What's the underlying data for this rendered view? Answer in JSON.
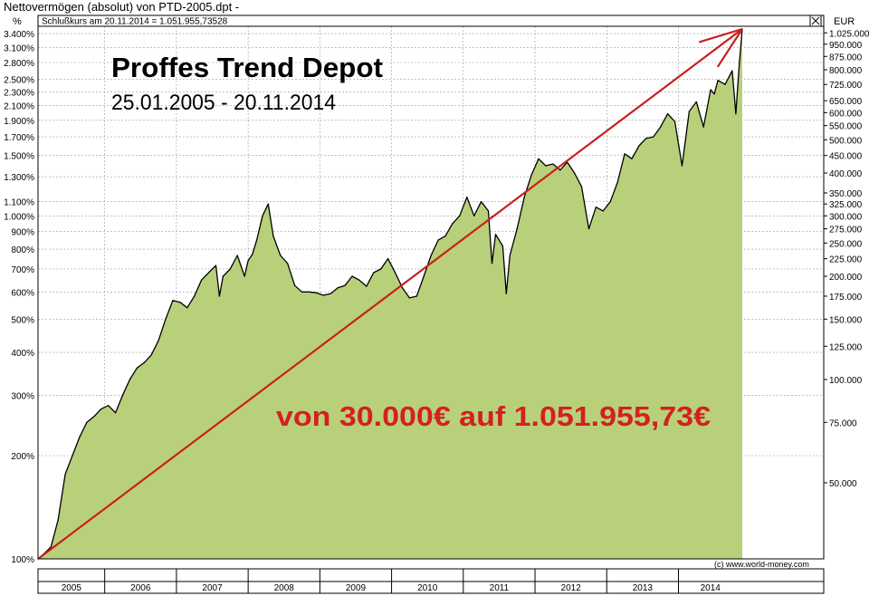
{
  "window": {
    "title": "Nettovermögen (absolut) von PTD-2005.dpt -",
    "status_line": "Schlußkurs am 20.11.2014 = 1.051.955,73528",
    "close_icon": "close-box-icon"
  },
  "chart_data": {
    "type": "area",
    "title": "Proffes Trend Depot",
    "subtitle": "25.01.2005 - 20.11.2014",
    "annotation": "von 30.000€ auf 1.051.955,73€",
    "copyright": "(c) www.world-money.com",
    "log_scale": true,
    "grid": true,
    "left_axis": {
      "unit": "%",
      "ticks": [
        "100%",
        "200%",
        "300%",
        "400%",
        "500%",
        "600%",
        "700%",
        "800%",
        "900%",
        "1.000%",
        "1.100%",
        "1.300%",
        "1.500%",
        "1.700%",
        "1.900%",
        "2.100%",
        "2.300%",
        "2.500%",
        "2.800%",
        "3.100%",
        "3.400%"
      ],
      "tick_values": [
        100,
        200,
        300,
        400,
        500,
        600,
        700,
        800,
        900,
        1000,
        1100,
        1300,
        1500,
        1700,
        1900,
        2100,
        2300,
        2500,
        2800,
        3100,
        3400
      ]
    },
    "right_axis": {
      "unit": "EUR",
      "ticks": [
        "50.000",
        "75.000",
        "100.000",
        "125.000",
        "150.000",
        "175.000",
        "200.000",
        "225.000",
        "250.000",
        "275.000",
        "300.000",
        "325.000",
        "350.000",
        "400.000",
        "450.000",
        "500.000",
        "550.000",
        "600.000",
        "650.000",
        "725.000",
        "800.000",
        "875.000",
        "950.000",
        "1.025.000"
      ],
      "tick_values": [
        50000,
        75000,
        100000,
        125000,
        150000,
        175000,
        200000,
        225000,
        250000,
        275000,
        300000,
        325000,
        350000,
        400000,
        450000,
        500000,
        550000,
        600000,
        650000,
        725000,
        800000,
        875000,
        950000,
        1025000
      ]
    },
    "x_axis": {
      "labels": [
        "2005",
        "2006",
        "2007",
        "2008",
        "2009",
        "2010",
        "2011",
        "2012",
        "2013",
        "2014"
      ],
      "start": 2005.07,
      "end": 2014.89
    },
    "colors": {
      "area": "#b9d07a",
      "line": "#000000",
      "trend": "#c8201e",
      "annotation": "#d42020",
      "grid": "#9a9a9a"
    },
    "trend_line": {
      "x": [
        2005.07,
        2014.89
      ],
      "y": [
        30000,
        1051955.73
      ]
    },
    "series": [
      {
        "x": [
          2005.07,
          2005.15,
          2005.25,
          2005.35,
          2005.45,
          2005.55,
          2005.65,
          2005.75,
          2005.85,
          2005.95,
          2006.05,
          2006.15,
          2006.25,
          2006.35,
          2006.45,
          2006.55,
          2006.65,
          2006.75,
          2006.85,
          2006.95,
          2007.05,
          2007.15,
          2007.25,
          2007.35,
          2007.45,
          2007.55,
          2007.6,
          2007.65,
          2007.75,
          2007.85,
          2007.95,
          2008.0,
          2008.06,
          2008.12,
          2008.2,
          2008.28,
          2008.35,
          2008.45,
          2008.55,
          2008.65,
          2008.75,
          2008.85,
          2008.95,
          2009.05,
          2009.15,
          2009.25,
          2009.35,
          2009.45,
          2009.55,
          2009.65,
          2009.75,
          2009.85,
          2009.95,
          2010.05,
          2010.15,
          2010.25,
          2010.35,
          2010.45,
          2010.55,
          2010.65,
          2010.75,
          2010.85,
          2010.95,
          2011.05,
          2011.15,
          2011.25,
          2011.35,
          2011.4,
          2011.45,
          2011.55,
          2011.6,
          2011.65,
          2011.75,
          2011.85,
          2011.95,
          2012.05,
          2012.15,
          2012.25,
          2012.35,
          2012.45,
          2012.55,
          2012.65,
          2012.75,
          2012.85,
          2012.95,
          2013.05,
          2013.15,
          2013.25,
          2013.35,
          2013.45,
          2013.55,
          2013.65,
          2013.75,
          2013.85,
          2013.95,
          2014.05,
          2014.15,
          2014.25,
          2014.35,
          2014.45,
          2014.5,
          2014.55,
          2014.65,
          2014.75,
          2014.8,
          2014.85,
          2014.89
        ],
        "values": [
          30000,
          31000,
          32500,
          39000,
          53000,
          60000,
          68000,
          75000,
          78000,
          82000,
          84000,
          80000,
          90000,
          100000,
          108000,
          112000,
          118000,
          130000,
          150000,
          170000,
          168000,
          162000,
          175000,
          195000,
          205000,
          215000,
          175000,
          200000,
          210000,
          230000,
          200000,
          222000,
          232000,
          255000,
          300000,
          325000,
          262000,
          230000,
          218000,
          188000,
          180000,
          180000,
          179000,
          176000,
          178000,
          185000,
          188000,
          200000,
          195000,
          187000,
          205000,
          210000,
          225000,
          205000,
          185000,
          173000,
          175000,
          200000,
          230000,
          255000,
          262000,
          285000,
          300000,
          340000,
          300000,
          330000,
          310000,
          218000,
          265000,
          245000,
          178000,
          230000,
          275000,
          340000,
          395000,
          440000,
          420000,
          425000,
          408000,
          430000,
          400000,
          365000,
          275000,
          318000,
          310000,
          330000,
          375000,
          455000,
          440000,
          480000,
          505000,
          510000,
          545000,
          595000,
          565000,
          420000,
          605000,
          645000,
          545000,
          700000,
          680000,
          745000,
          725000,
          795000,
          595000,
          840000,
          1051955
        ]
      }
    ]
  }
}
